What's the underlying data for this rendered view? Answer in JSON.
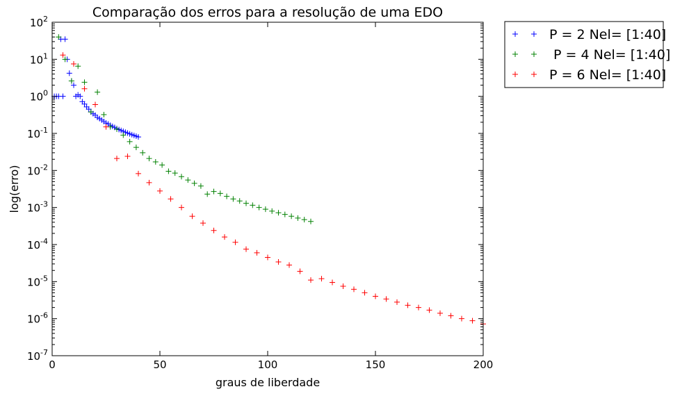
{
  "chart_data": {
    "type": "scatter",
    "title": "Comparação dos erros para a resolução de uma EDO",
    "xlabel": "graus de liberdade",
    "ylabel": "log(erro)",
    "xlim": [
      0,
      200
    ],
    "ylim": [
      1e-07,
      100
    ],
    "yscale": "log",
    "grid": false,
    "legend_position": "outside-top-right",
    "x_ticks": [
      "0",
      "50",
      "100",
      "150",
      "200"
    ],
    "y_ticks": [
      {
        "base": "10",
        "exp": "2"
      },
      {
        "base": "10",
        "exp": "1"
      },
      {
        "base": "10",
        "exp": "0"
      },
      {
        "base": "10",
        "exp": "-1"
      },
      {
        "base": "10",
        "exp": "-2"
      },
      {
        "base": "10",
        "exp": "-3"
      },
      {
        "base": "10",
        "exp": "-4"
      },
      {
        "base": "10",
        "exp": "-5"
      },
      {
        "base": "10",
        "exp": "-6"
      },
      {
        "base": "10",
        "exp": "-7"
      }
    ],
    "series": [
      {
        "name": "P = 2 Nel= [1:40]",
        "color": "#0000ff",
        "marker": "+",
        "points": [
          [
            1,
            1.0
          ],
          [
            2,
            1.0
          ],
          [
            3,
            1.0
          ],
          [
            4,
            35
          ],
          [
            5,
            1.0
          ],
          [
            6,
            35
          ],
          [
            7,
            10
          ],
          [
            8,
            4.2
          ],
          [
            9,
            2.6
          ],
          [
            10,
            2.0
          ],
          [
            11,
            1.0
          ],
          [
            12,
            1.1
          ],
          [
            13,
            1.0
          ],
          [
            14,
            0.72
          ],
          [
            15,
            0.62
          ],
          [
            16,
            0.52
          ],
          [
            17,
            0.45
          ],
          [
            18,
            0.38
          ],
          [
            19,
            0.34
          ],
          [
            20,
            0.31
          ],
          [
            21,
            0.27
          ],
          [
            22,
            0.25
          ],
          [
            23,
            0.23
          ],
          [
            24,
            0.21
          ],
          [
            25,
            0.19
          ],
          [
            26,
            0.18
          ],
          [
            27,
            0.165
          ],
          [
            28,
            0.155
          ],
          [
            29,
            0.145
          ],
          [
            30,
            0.135
          ],
          [
            31,
            0.127
          ],
          [
            32,
            0.12
          ],
          [
            33,
            0.114
          ],
          [
            34,
            0.108
          ],
          [
            35,
            0.102
          ],
          [
            36,
            0.097
          ],
          [
            37,
            0.092
          ],
          [
            38,
            0.088
          ],
          [
            39,
            0.084
          ],
          [
            40,
            0.08
          ]
        ]
      },
      {
        "name": " P = 4 Nel= [1:40]",
        "color": "#008000",
        "marker": "+",
        "points": [
          [
            3,
            40
          ],
          [
            6,
            10
          ],
          [
            9,
            2.6
          ],
          [
            12,
            6.5
          ],
          [
            15,
            2.4
          ],
          [
            18,
            0.38
          ],
          [
            21,
            1.3
          ],
          [
            24,
            0.32
          ],
          [
            27,
            0.15
          ],
          [
            30,
            0.13
          ],
          [
            33,
            0.09
          ],
          [
            36,
            0.06
          ],
          [
            39,
            0.042
          ],
          [
            42,
            0.03
          ],
          [
            45,
            0.021
          ],
          [
            48,
            0.017
          ],
          [
            51,
            0.014
          ],
          [
            54,
            0.0095
          ],
          [
            57,
            0.0085
          ],
          [
            60,
            0.0068
          ],
          [
            63,
            0.0055
          ],
          [
            66,
            0.0045
          ],
          [
            69,
            0.0038
          ],
          [
            72,
            0.0023
          ],
          [
            75,
            0.0027
          ],
          [
            78,
            0.0024
          ],
          [
            81,
            0.002
          ],
          [
            84,
            0.0017
          ],
          [
            87,
            0.0015
          ],
          [
            90,
            0.0013
          ],
          [
            93,
            0.00115
          ],
          [
            96,
            0.001
          ],
          [
            99,
            0.0009
          ],
          [
            102,
            0.0008
          ],
          [
            105,
            0.00072
          ],
          [
            108,
            0.00065
          ],
          [
            111,
            0.00058
          ],
          [
            114,
            0.00052
          ],
          [
            117,
            0.00047
          ],
          [
            120,
            0.00042
          ]
        ]
      },
      {
        "name": "P = 6 Nel= [1:40]",
        "color": "#ff0000",
        "marker": "+",
        "points": [
          [
            5,
            13
          ],
          [
            10,
            7.5
          ],
          [
            15,
            1.6
          ],
          [
            20,
            0.6
          ],
          [
            25,
            0.15
          ],
          [
            30,
            0.021
          ],
          [
            35,
            0.024
          ],
          [
            40,
            0.0082
          ],
          [
            45,
            0.0047
          ],
          [
            50,
            0.0028
          ],
          [
            55,
            0.0017
          ],
          [
            60,
            0.001
          ],
          [
            65,
            0.00058
          ],
          [
            70,
            0.00038
          ],
          [
            75,
            0.00024
          ],
          [
            80,
            0.00016
          ],
          [
            85,
            0.000115
          ],
          [
            90,
            7.5e-05
          ],
          [
            95,
            6e-05
          ],
          [
            100,
            4.5e-05
          ],
          [
            105,
            3.4e-05
          ],
          [
            110,
            2.8e-05
          ],
          [
            115,
            1.9e-05
          ],
          [
            120,
            1.1e-05
          ],
          [
            125,
            1.2e-05
          ],
          [
            130,
            9.5e-06
          ],
          [
            135,
            7.5e-06
          ],
          [
            140,
            6.2e-06
          ],
          [
            145,
            5e-06
          ],
          [
            150,
            4e-06
          ],
          [
            155,
            3.4e-06
          ],
          [
            160,
            2.8e-06
          ],
          [
            165,
            2.3e-06
          ],
          [
            170,
            2e-06
          ],
          [
            175,
            1.7e-06
          ],
          [
            180,
            1.4e-06
          ],
          [
            185,
            1.2e-06
          ],
          [
            190,
            1e-06
          ],
          [
            195,
            8.8e-07
          ],
          [
            200,
            7.2e-07
          ]
        ]
      }
    ]
  }
}
